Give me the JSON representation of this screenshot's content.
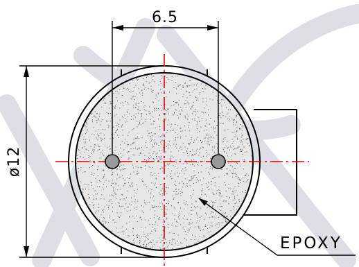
{
  "drawing": {
    "dimension_width": "6.5",
    "dimension_diameter": "ø12",
    "callout_label": "EPOXY"
  },
  "colors": {
    "line": "#000000",
    "centerline": "#e00000",
    "fill": "#e6e6e6",
    "pin": "#999999",
    "watermark": "#dce0e6"
  }
}
